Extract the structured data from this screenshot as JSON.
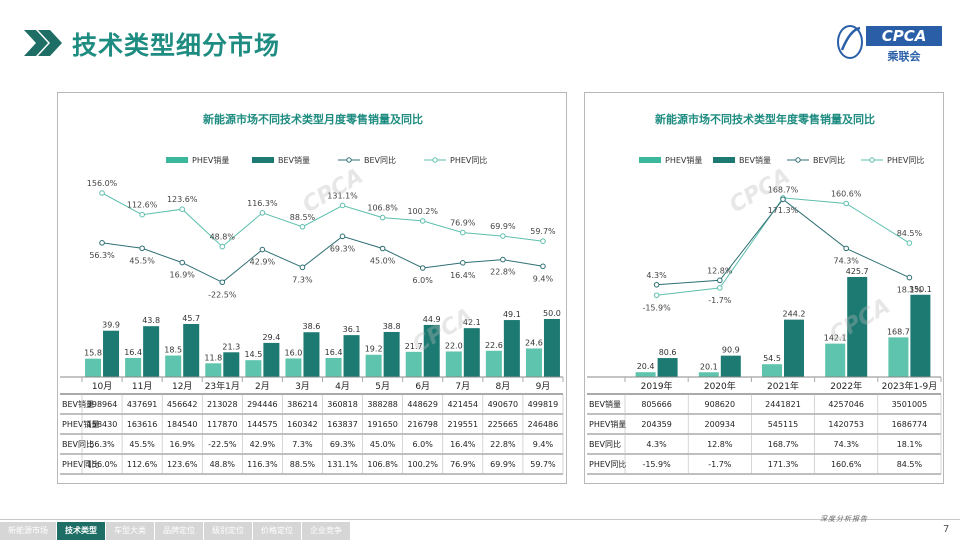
{
  "header": {
    "title": "技术类型细分市场",
    "logo_text": "CPCA",
    "logo_sub": "乘联会"
  },
  "colors": {
    "phev_bar": "#3bb79b",
    "bev_bar": "#1c7a73",
    "bev_line": "#2f6f74",
    "phev_line": "#5dbfae",
    "title": "#1f8c81"
  },
  "footer": {
    "tabs": [
      "新能源市场",
      "技术类型",
      "车型大类",
      "品牌定位",
      "级别定位",
      "价格定位",
      "企业竞争"
    ],
    "active_tab": 1,
    "right_text": "深度分析报告",
    "page_number": "7"
  },
  "chart_data": [
    {
      "type": "bar",
      "title": "新能源市场不同技术类型月度零售销量及同比",
      "categories": [
        "10月",
        "11月",
        "12月",
        "23年1月",
        "2月",
        "3月",
        "4月",
        "5月",
        "6月",
        "7月",
        "8月",
        "9月"
      ],
      "legend": [
        "PHEV销量",
        "BEV销量",
        "BEV同比",
        "PHEV同比"
      ],
      "series": [
        {
          "name": "PHEV销量",
          "kind": "bar",
          "values": [
            15.8,
            16.4,
            18.5,
            11.8,
            14.5,
            16.0,
            16.4,
            19.2,
            21.7,
            22.0,
            22.6,
            24.6
          ],
          "labels": [
            "15.8",
            "16.4",
            "18.5",
            "11.8",
            "14.5",
            "16.0",
            "16.4",
            "19.2",
            "21.7",
            "22.0",
            "22.6",
            "24.6"
          ]
        },
        {
          "name": "BEV销量",
          "kind": "bar",
          "values": [
            39.9,
            43.8,
            45.7,
            21.3,
            29.4,
            38.6,
            36.1,
            38.8,
            44.9,
            42.1,
            49.1,
            50.0
          ],
          "labels": [
            "39.9",
            "43.8",
            "45.7",
            "21.3",
            "29.4",
            "38.6",
            "36.1",
            "38.8",
            "44.9",
            "42.1",
            "49.1",
            "50.0"
          ]
        },
        {
          "name": "BEV同比",
          "kind": "line",
          "values": [
            56.3,
            45.5,
            16.9,
            -22.5,
            42.9,
            7.3,
            69.3,
            45.0,
            6.0,
            16.4,
            22.8,
            9.4
          ],
          "labels": [
            "56.3%",
            "45.5%",
            "16.9%",
            "-22.5%",
            "42.9%",
            "7.3%",
            "69.3%",
            "45.0%",
            "6.0%",
            "16.4%",
            "22.8%",
            "9.4%"
          ]
        },
        {
          "name": "PHEV同比",
          "kind": "line",
          "values": [
            156.0,
            112.6,
            123.6,
            48.8,
            116.3,
            88.5,
            131.1,
            106.8,
            100.2,
            76.9,
            69.9,
            59.7
          ],
          "labels": [
            "156.0%",
            "112.6%",
            "123.6%",
            "48.8%",
            "116.3%",
            "88.5%",
            "131.1%",
            "106.8%",
            "100.2%",
            "76.9%",
            "69.9%",
            "59.7%"
          ]
        }
      ],
      "table": {
        "rows": [
          {
            "label": "BEV销量",
            "cells": [
              "398964",
              "437691",
              "456642",
              "213028",
              "294446",
              "386214",
              "360818",
              "388288",
              "448629",
              "421454",
              "490670",
              "499819"
            ]
          },
          {
            "label": "PHEV销量",
            "cells": [
              "158430",
              "163616",
              "184540",
              "117870",
              "144575",
              "160342",
              "163837",
              "191650",
              "216798",
              "219551",
              "225665",
              "246486"
            ]
          },
          {
            "label": "BEV同比",
            "cells": [
              "56.3%",
              "45.5%",
              "16.9%",
              "-22.5%",
              "42.9%",
              "7.3%",
              "69.3%",
              "45.0%",
              "6.0%",
              "16.4%",
              "22.8%",
              "9.4%"
            ]
          },
          {
            "label": "PHEV同比",
            "cells": [
              "156.0%",
              "112.6%",
              "123.6%",
              "48.8%",
              "116.3%",
              "88.5%",
              "131.1%",
              "106.8%",
              "100.2%",
              "76.9%",
              "69.9%",
              "59.7%"
            ]
          }
        ]
      }
    },
    {
      "type": "bar",
      "title": "新能源市场不同技术类型年度零售销量及同比",
      "categories": [
        "2019年",
        "2020年",
        "2021年",
        "2022年",
        "2023年1-9月"
      ],
      "legend": [
        "PHEV销量",
        "BEV销量",
        "BEV同比",
        "PHEV同比"
      ],
      "series": [
        {
          "name": "PHEV销量",
          "kind": "bar",
          "values": [
            20.4,
            20.1,
            54.5,
            142.1,
            168.7
          ],
          "labels": [
            "20.4",
            "20.1",
            "54.5",
            "142.1",
            "168.7"
          ]
        },
        {
          "name": "BEV销量",
          "kind": "bar",
          "values": [
            80.6,
            90.9,
            244.2,
            425.7,
            350.1
          ],
          "labels": [
            "80.6",
            "90.9",
            "244.2",
            "425.7",
            "350.1"
          ]
        },
        {
          "name": "BEV同比",
          "kind": "line",
          "values": [
            4.3,
            12.8,
            168.7,
            74.3,
            18.1
          ],
          "labels": [
            "4.3%",
            "12.8%",
            "168.7%",
            "74.3%",
            "18.1%"
          ]
        },
        {
          "name": "PHEV同比",
          "kind": "line",
          "values": [
            -15.9,
            -1.7,
            171.3,
            160.6,
            84.5
          ],
          "labels": [
            "-15.9%",
            "-1.7%",
            "171.3%",
            "160.6%",
            "84.5%"
          ]
        }
      ],
      "table": {
        "rows": [
          {
            "label": "BEV销量",
            "cells": [
              "805666",
              "908620",
              "2441821",
              "4257046",
              "3501005"
            ]
          },
          {
            "label": "PHEV销量",
            "cells": [
              "204359",
              "200934",
              "545115",
              "1420753",
              "1686774"
            ]
          },
          {
            "label": "BEV同比",
            "cells": [
              "4.3%",
              "12.8%",
              "168.7%",
              "74.3%",
              "18.1%"
            ]
          },
          {
            "label": "PHEV同比",
            "cells": [
              "-15.9%",
              "-1.7%",
              "171.3%",
              "160.6%",
              "84.5%"
            ]
          }
        ]
      }
    }
  ]
}
